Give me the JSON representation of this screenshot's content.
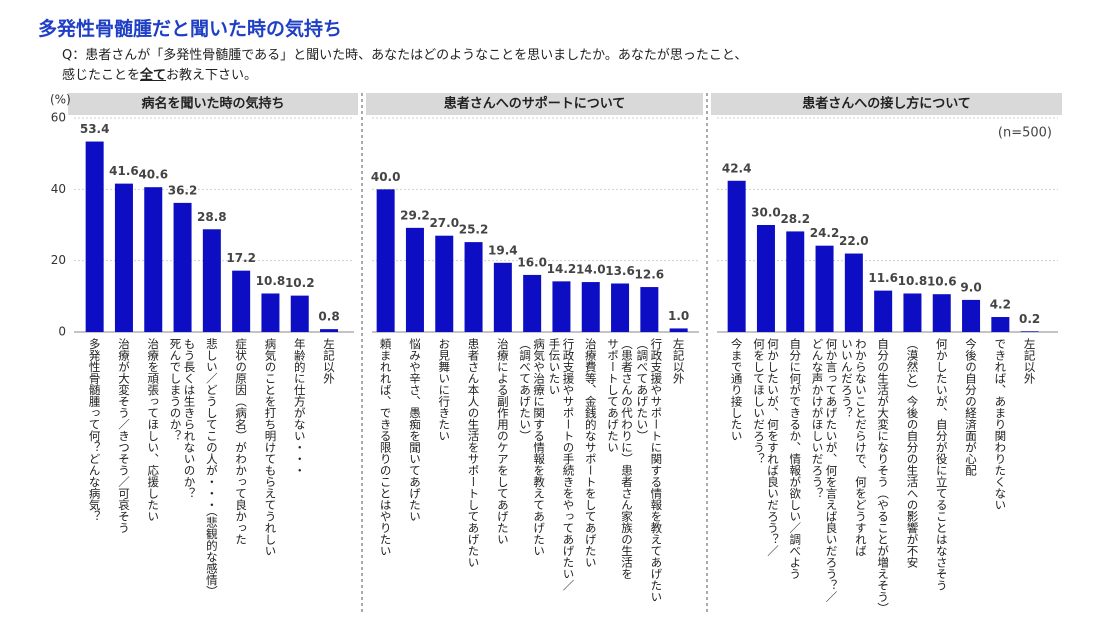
{
  "header": {
    "title": "多発性骨髄腫だと聞いた時の気持ち",
    "question_line1": "Q：患者さんが「多発性骨髄腫である」と聞いた時、あなたはどのようなことを思いましたか。あなたが思ったこと、",
    "question_line2": [
      "感じたことを",
      "全て",
      "お教え下さい。"
    ]
  },
  "chart_data": [
    {
      "type": "bar",
      "title": "病名を聞いた時の気持ち",
      "y_label": "(%)",
      "color": "#0d0dc4",
      "ylim": [
        0,
        60
      ],
      "yticks": [
        0,
        20,
        40,
        60
      ],
      "grid": true,
      "categories": [
        [
          "多発性骨髄腫って何？どんな病気？"
        ],
        [
          "治療が大変そう／きつそう／可哀そう"
        ],
        [
          "治療を頑張ってほしい、応援したい"
        ],
        [
          "もう長くは生きられないのか？",
          "死んでしまうのか？"
        ],
        [
          "悲しい／どうしてこの人が・・・（悲観的な感情）"
        ],
        [
          "症状の原因（病名）がわかって良かった"
        ],
        [
          "病気のことを打ち明けてもらえてうれしい"
        ],
        [
          "年齢的に仕方がない・・・"
        ],
        [
          "左記以外"
        ]
      ],
      "values": [
        53.4,
        41.6,
        40.6,
        36.2,
        28.8,
        17.2,
        10.8,
        10.2,
        0.8
      ],
      "value_labels": [
        "53.4",
        "41.6",
        "40.6",
        "36.2",
        "28.8",
        "17.2",
        "10.8",
        "10.2",
        "0.8"
      ]
    },
    {
      "type": "bar",
      "title": "患者さんへのサポートについて",
      "color": "#0d0dc4",
      "ylim": [
        0,
        60
      ],
      "grid": true,
      "categories": [
        [
          "頼まれれば、できる限りのことはやりたい"
        ],
        [
          "悩みや辛さ、愚痴を聞いてあげたい"
        ],
        [
          "お見舞いに行きたい"
        ],
        [
          "患者さん本人の生活をサポートしてあげたい"
        ],
        [
          "治療による副作用のケアをしてあげたい"
        ],
        [
          "病気や治療に関する情報を教えてあげたい",
          "（調べてあげたい）"
        ],
        [
          "行政支援やサポートの手続きをやってあげたい／",
          "手伝いたい"
        ],
        [
          "治療費等、金銭的なサポートをしてあげたい"
        ],
        [
          "（患者さんの代わりに）患者さん家族の生活を",
          "サポートしてあげたい"
        ],
        [
          "行政支援やサポートに関する情報を教えてあげたい",
          "（調べてあげたい）"
        ],
        [
          "左記以外"
        ]
      ],
      "values": [
        40.0,
        29.2,
        27.0,
        25.2,
        19.4,
        16.0,
        14.2,
        14.0,
        13.6,
        12.6,
        1.0
      ],
      "value_labels": [
        "40.0",
        "29.2",
        "27.0",
        "25.2",
        "19.4",
        "16.0",
        "14.2",
        "14.0",
        "13.6",
        "12.6",
        "1.0"
      ]
    },
    {
      "type": "bar",
      "title": "患者さんへの接し方について",
      "note": "(n=500)",
      "color": "#0d0dc4",
      "ylim": [
        0,
        60
      ],
      "grid": true,
      "categories": [
        [
          "今まで通り接したい"
        ],
        [
          "何かしたいが、何をすれば良いだろう？／",
          "何をしてほしいだろう？"
        ],
        [
          "自分に何ができるか、情報が欲しい／調べよう"
        ],
        [
          "何か言ってあげたいが、何を言えば良いだろう？／",
          "どんな声かけがほしいだろう？"
        ],
        [
          "わからないことだらけで、何をどうすれば",
          "いいんだろう？"
        ],
        [
          "自分の生活が大変になりそう（やることが増えそう）"
        ],
        [
          "（漠然と）今後の自分の生活への影響が不安"
        ],
        [
          "何かしたいが、自分が役に立てることはなさそう"
        ],
        [
          "今後の自分の経済面が心配"
        ],
        [
          "できれば、あまり関わりたくない"
        ],
        [
          "左記以外"
        ]
      ],
      "values": [
        42.4,
        30.0,
        28.2,
        24.2,
        22.0,
        11.6,
        10.8,
        10.6,
        9.0,
        4.2,
        0.2
      ],
      "value_labels": [
        "42.4",
        "30.0",
        "28.2",
        "24.2",
        "22.0",
        "11.6",
        "10.8",
        "10.6",
        "9.0",
        "4.2",
        "0.2"
      ]
    }
  ]
}
